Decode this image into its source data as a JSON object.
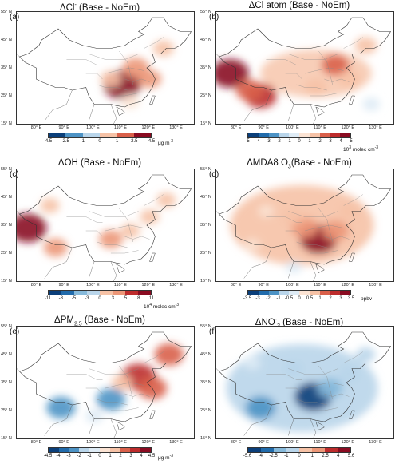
{
  "chart_data": [
    {
      "type": "heatmap",
      "panel": "(a)",
      "title_prefix": "ΔCl",
      "title_sup": "-",
      "title_sub": "",
      "title_suffix": " (Base - NoEm)",
      "colorbar": {
        "ticks": [
          "-4.5",
          "-2.5",
          "-1",
          "0",
          "1",
          "2.5",
          "4.5"
        ],
        "unit": "μg m",
        "unit_sup": "-3"
      },
      "hotspots": [
        {
          "lon": 110,
          "lat": 29,
          "value": 4.5
        },
        {
          "lon": 115,
          "lat": 35,
          "value": 2.5
        },
        {
          "lon": 120,
          "lat": 31,
          "value": 2
        },
        {
          "lon": 125,
          "lat": 42,
          "value": 1.5
        },
        {
          "lon": 106,
          "lat": 31,
          "value": 1.5
        },
        {
          "lon": 113,
          "lat": 23,
          "value": 1
        }
      ]
    },
    {
      "type": "heatmap",
      "panel": "(b)",
      "title_prefix": "ΔCl atom (Base - NoEm)",
      "title_sup": "",
      "title_sub": "",
      "title_suffix": "",
      "colorbar": {
        "ticks": [
          "-5",
          "-4",
          "-3",
          "-2",
          "-1",
          "0",
          "1",
          "2",
          "3",
          "4",
          "5"
        ],
        "unit": "10",
        "unit_sup": "3",
        "unit_suffix": " molec cm",
        "unit_sup2": "-3"
      },
      "hotspots": [
        {
          "lon": 77,
          "lat": 33,
          "value": 5
        },
        {
          "lon": 88,
          "lat": 25,
          "value": 4
        },
        {
          "lon": 84,
          "lat": 27,
          "value": 3
        },
        {
          "lon": 115,
          "lat": 36,
          "value": 3
        },
        {
          "lon": 120,
          "lat": 31,
          "value": 2
        },
        {
          "lon": 108,
          "lat": 28,
          "value": 2
        },
        {
          "lon": 126,
          "lat": 43,
          "value": 2
        },
        {
          "lon": 128,
          "lat": 22,
          "value": -1
        }
      ]
    },
    {
      "type": "heatmap",
      "panel": "(c)",
      "title_prefix": "ΔOH (Base - NoEm)",
      "title_sup": "",
      "title_sub": "",
      "title_suffix": "",
      "colorbar": {
        "ticks": [
          "-11",
          "-8",
          "-5",
          "-3",
          "0",
          "3",
          "5",
          "8",
          "11"
        ],
        "unit": "10",
        "unit_sup": "4",
        "unit_suffix": " molec cm",
        "unit_sup2": "-3"
      },
      "hotspots": [
        {
          "lon": 76,
          "lat": 34,
          "value": 11
        },
        {
          "lon": 84,
          "lat": 42,
          "value": 3
        },
        {
          "lon": 86,
          "lat": 27,
          "value": 5
        },
        {
          "lon": 106,
          "lat": 30,
          "value": 5
        },
        {
          "lon": 113,
          "lat": 33,
          "value": 3
        },
        {
          "lon": 120,
          "lat": 38,
          "value": 3
        },
        {
          "lon": 126,
          "lat": 44,
          "value": 3
        }
      ]
    },
    {
      "type": "heatmap",
      "panel": "(d)",
      "title_prefix": "ΔMDA8 O",
      "title_sup": "",
      "title_sub": "3",
      "title_suffix": "(Base - NoEm)",
      "colorbar": {
        "ticks": [
          "-3.5",
          "-3",
          "-2",
          "-1",
          "-0.5",
          "0",
          "0.5",
          "1",
          "2",
          "3",
          "3.5"
        ],
        "unit": "ppbv",
        "unit_sup": ""
      },
      "hotspots": [
        {
          "lon": 109,
          "lat": 30,
          "value": 3.5
        },
        {
          "lon": 104,
          "lat": 34,
          "value": 2
        },
        {
          "lon": 115,
          "lat": 33,
          "value": 2
        },
        {
          "lon": 100,
          "lat": 38,
          "value": 1
        },
        {
          "lon": 120,
          "lat": 40,
          "value": 1
        },
        {
          "lon": 90,
          "lat": 40,
          "value": 0.5
        },
        {
          "lon": 85,
          "lat": 28,
          "value": 0.5
        },
        {
          "lon": 100,
          "lat": 20,
          "value": -0.5
        }
      ]
    },
    {
      "type": "heatmap",
      "panel": "(e)",
      "title_prefix": "ΔPM",
      "title_sup": "",
      "title_sub": "2.5",
      "title_suffix": " (Base - NoEm)",
      "colorbar": {
        "ticks": [
          "-4.5",
          "-4",
          "-3",
          "-2",
          "-1",
          "0",
          "1",
          "2",
          "3",
          "4",
          "4.5"
        ],
        "unit": "μg m",
        "unit_sup": "-3"
      },
      "hotspots": [
        {
          "lon": 116,
          "lat": 37,
          "value": 4
        },
        {
          "lon": 121,
          "lat": 33,
          "value": 3
        },
        {
          "lon": 127,
          "lat": 45,
          "value": 3
        },
        {
          "lon": 110,
          "lat": 35,
          "value": 1.5
        },
        {
          "lon": 88,
          "lat": 26,
          "value": -3
        },
        {
          "lon": 106,
          "lat": 29,
          "value": -3
        },
        {
          "lon": 100,
          "lat": 23,
          "value": -1
        }
      ]
    },
    {
      "type": "heatmap",
      "panel": "(f)",
      "title_prefix": "ΔNO",
      "title_sup": "-",
      "title_sub": "3",
      "title_suffix": " (Base - NoEm)",
      "colorbar": {
        "ticks": [
          "-5.6",
          "-4",
          "-2.5",
          "-1",
          "0",
          "1",
          "2.5",
          "4",
          "5.6"
        ],
        "unit": "",
        "unit_sup": ""
      },
      "hotspots": [
        {
          "lon": 107,
          "lat": 30,
          "value": -5.6
        },
        {
          "lon": 88,
          "lat": 26,
          "value": -4
        },
        {
          "lon": 113,
          "lat": 33,
          "value": -3
        },
        {
          "lon": 120,
          "lat": 38,
          "value": -2
        },
        {
          "lon": 100,
          "lat": 40,
          "value": -1.5
        },
        {
          "lon": 126,
          "lat": 45,
          "value": -1.5
        },
        {
          "lon": 85,
          "lat": 42,
          "value": -1
        }
      ]
    }
  ],
  "axes": {
    "lat_ticks": [
      "55° N",
      "45° N",
      "35° N",
      "25° N",
      "15° N"
    ],
    "lat_values": [
      55,
      45,
      35,
      25,
      15
    ],
    "lon_ticks": [
      "80° E",
      "90° E",
      "100° E",
      "110° E",
      "120° E",
      "130° E"
    ],
    "lon_values": [
      80,
      90,
      100,
      110,
      120,
      130
    ],
    "xlim": [
      72,
      136
    ],
    "ylim": [
      15,
      55
    ]
  },
  "colors": {
    "pos": [
      "#ffffff",
      "#fbe3d3",
      "#f6c2a6",
      "#ec9778",
      "#d9604a",
      "#bd2c2c",
      "#8a0b21"
    ],
    "neg": [
      "#ffffff",
      "#deebf5",
      "#b9d5ea",
      "#86b9da",
      "#4d93c5",
      "#216bab",
      "#0b3f7a"
    ]
  }
}
